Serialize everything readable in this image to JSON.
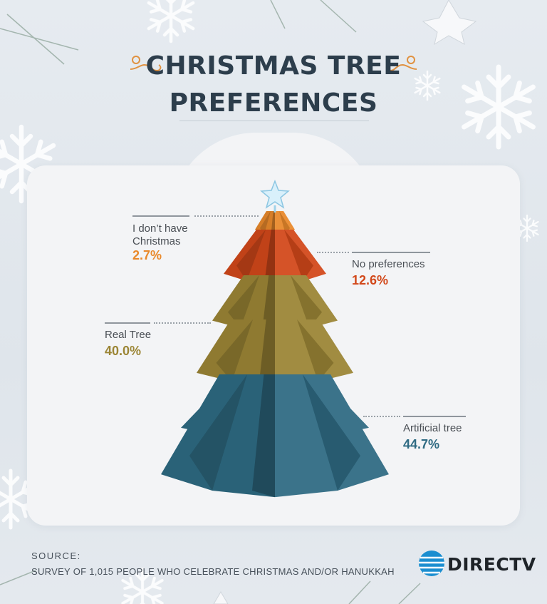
{
  "title_lines": [
    "CHRISTMAS TREE",
    "PREFERENCES"
  ],
  "colors": {
    "title": "#2d3e4c",
    "artificial": "#2e6a82",
    "real": "#9b8535",
    "no_pref": "#d2481a",
    "no_christmas": "#e9892b",
    "accent_orange": "#e0913f"
  },
  "icons": [
    "swirl-ornament-icon",
    "star-icon",
    "snowflake-icon",
    "att-globe-icon"
  ],
  "chart_data": {
    "type": "pie",
    "title": "CHRISTMAS TREE PREFERENCES",
    "unit": "%",
    "slices": [
      {
        "label": "I don’t have\nChristmas",
        "value": 2.7,
        "value_label": "2.7%",
        "color": "#e9892b"
      },
      {
        "label": "No preferences",
        "value": 12.6,
        "value_label": "12.6%",
        "color": "#d2481a"
      },
      {
        "label": "Real Tree",
        "value": 40.0,
        "value_label": "40.0%",
        "color": "#9b8535"
      },
      {
        "label": "Artificial tree",
        "value": 44.7,
        "value_label": "44.7%",
        "color": "#2e6a82"
      }
    ]
  },
  "source": {
    "label": "SOURCE:",
    "text": "SURVEY OF 1,015 PEOPLE WHO CELEBRATE CHRISTMAS AND/OR HANUKKAH"
  },
  "brand": {
    "name": "DIRECTV"
  }
}
